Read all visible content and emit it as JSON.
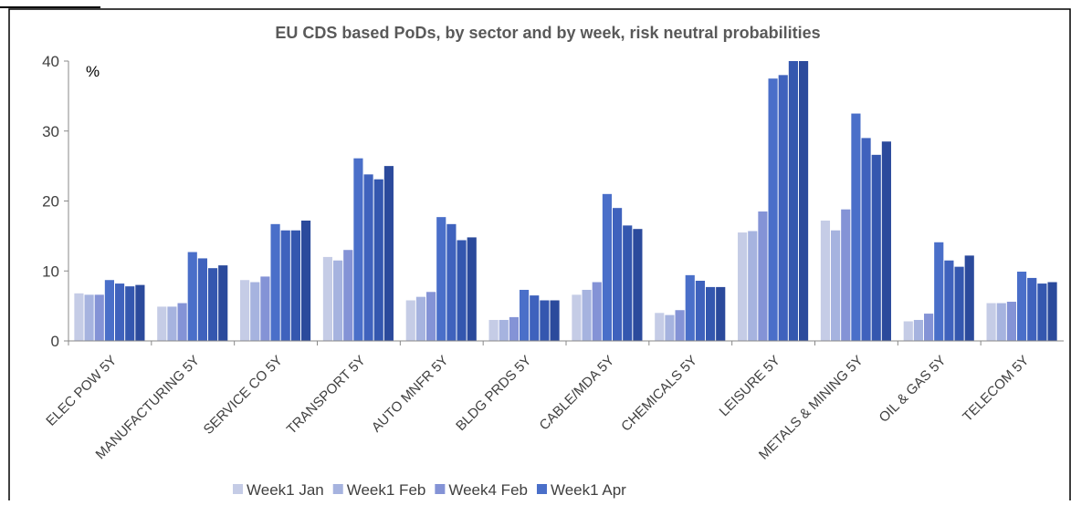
{
  "chart_data": {
    "type": "bar",
    "title": "EU CDS based PoDs, by sector and by week, risk neutral probabilities",
    "unit_label": "%",
    "categories": [
      "ELEC POW 5Y",
      "MANUFACTURING 5Y",
      "SERVICE CO 5Y",
      "TRANSPORT 5Y",
      "AUTO MNFR 5Y",
      "BLDG PRDS 5Y",
      "CABLE/MDA 5Y",
      "CHEMICALS 5Y",
      "LEISURE 5Y",
      "METALS & MINING 5Y",
      "OIL & GAS 5Y",
      "TELECOM 5Y"
    ],
    "series": [
      {
        "name": "Week1 Jan",
        "color": "#c5cce6",
        "values": [
          6.8,
          4.9,
          8.7,
          12.0,
          5.8,
          3.0,
          6.6,
          4.0,
          15.5,
          17.2,
          2.8,
          5.4
        ]
      },
      {
        "name": "Week1 Feb",
        "color": "#a6b3df",
        "values": [
          6.6,
          4.9,
          8.4,
          11.5,
          6.3,
          3.0,
          7.3,
          3.7,
          15.7,
          15.8,
          3.0,
          5.4
        ]
      },
      {
        "name": "Week4 Feb",
        "color": "#8493d6",
        "values": [
          6.6,
          5.4,
          9.2,
          13.0,
          7.0,
          3.4,
          8.4,
          4.4,
          18.5,
          18.8,
          3.9,
          5.6
        ]
      },
      {
        "name": "Week1 Apr",
        "color": "#4a6fc9",
        "values": [
          8.7,
          12.7,
          16.7,
          26.1,
          17.7,
          7.3,
          21.0,
          9.4,
          37.5,
          32.5,
          14.1,
          9.9
        ]
      },
      {
        "color": "#3f62bd",
        "values": [
          8.2,
          11.8,
          15.8,
          23.8,
          16.7,
          6.5,
          19.0,
          8.6,
          38.0,
          29.0,
          11.5,
          9.0
        ]
      },
      {
        "color": "#3457af",
        "values": [
          7.8,
          10.4,
          15.8,
          23.1,
          14.4,
          5.8,
          16.5,
          7.7,
          40,
          26.6,
          10.6,
          8.2
        ]
      },
      {
        "color": "#2b4a9c",
        "values": [
          8.0,
          10.8,
          17.2,
          25.0,
          14.8,
          5.8,
          16.0,
          7.7,
          40,
          28.5,
          12.2,
          8.4
        ]
      }
    ],
    "ylim": [
      0,
      40
    ],
    "yticks": [
      0,
      10,
      20,
      30,
      40
    ],
    "grid": false,
    "legend": "bottom"
  }
}
